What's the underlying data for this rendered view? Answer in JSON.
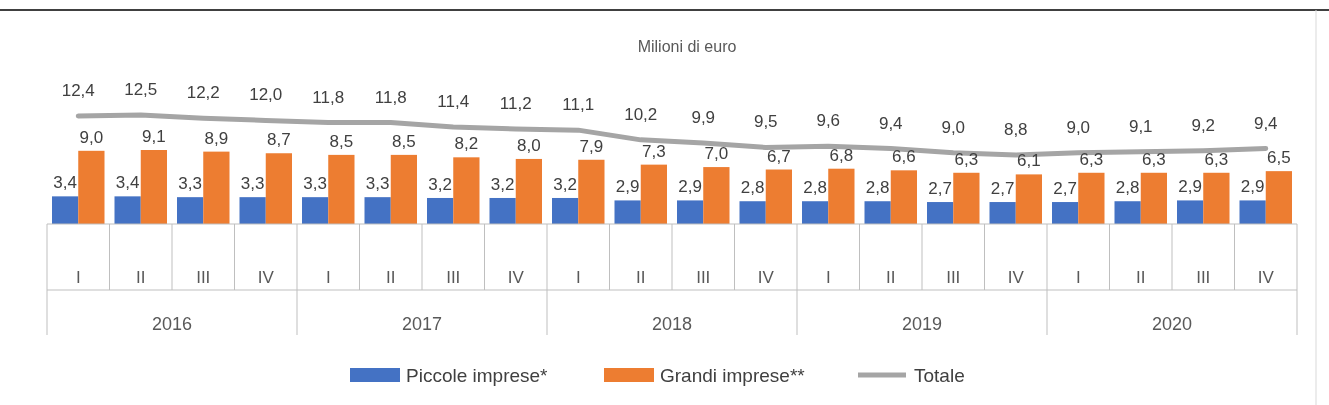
{
  "chart_data": {
    "type": "bar",
    "title": "Milioni di euro",
    "categories": [
      "I",
      "II",
      "III",
      "IV",
      "I",
      "II",
      "III",
      "IV",
      "I",
      "II",
      "III",
      "IV",
      "I",
      "II",
      "III",
      "IV",
      "I",
      "II",
      "III",
      "IV"
    ],
    "annotations": [
      "2016",
      "2017",
      "2018",
      "2019",
      "2020"
    ],
    "series": [
      {
        "name": "Piccole imprese*",
        "color": "#4472c4",
        "values": [
          3.4,
          3.4,
          3.3,
          3.3,
          3.3,
          3.3,
          3.2,
          3.2,
          3.2,
          2.9,
          2.9,
          2.8,
          2.8,
          2.8,
          2.7,
          2.7,
          2.7,
          2.8,
          2.9,
          2.9
        ],
        "value_labels": [
          "3,4",
          "3,4",
          "3,3",
          "3,3",
          "3,3",
          "3,3",
          "3,2",
          "3,2",
          "3,2",
          "2,9",
          "2,9",
          "2,8",
          "2,8",
          "2,8",
          "2,7",
          "2,7",
          "2,7",
          "2,8",
          "2,9",
          "2,9"
        ]
      },
      {
        "name": "Grandi imprese**",
        "color": "#ed7d31",
        "values": [
          9.0,
          9.1,
          8.9,
          8.7,
          8.5,
          8.5,
          8.2,
          8.0,
          7.9,
          7.3,
          7.0,
          6.7,
          6.8,
          6.6,
          6.3,
          6.1,
          6.3,
          6.3,
          6.3,
          6.5
        ],
        "value_labels": [
          "9,0",
          "9,1",
          "8,9",
          "8,7",
          "8,5",
          "8,5",
          "8,2",
          "8,0",
          "7,9",
          "7,3",
          "7,0",
          "6,7",
          "6,8",
          "6,6",
          "6,3",
          "6,1",
          "6,3",
          "6,3",
          "6,3",
          "6,5"
        ]
      },
      {
        "name": "Totale",
        "type": "line",
        "axis": "y2",
        "color": "#a5a5a5",
        "values": [
          12.4,
          12.5,
          12.2,
          12.0,
          11.8,
          11.8,
          11.4,
          11.2,
          11.1,
          10.2,
          9.9,
          9.5,
          9.6,
          9.4,
          9.0,
          8.8,
          9.0,
          9.1,
          9.2,
          9.4
        ],
        "value_labels": [
          "12,4",
          "12,5",
          "12,2",
          "12,0",
          "11,8",
          "11,8",
          "11,4",
          "11,2",
          "11,1",
          "10,2",
          "9,9",
          "9,5",
          "9,6",
          "9,4",
          "9,0",
          "8,8",
          "9,0",
          "9,1",
          "9,2",
          "9,4"
        ]
      }
    ],
    "tick_labels": "x",
    "legend": "bottom"
  }
}
